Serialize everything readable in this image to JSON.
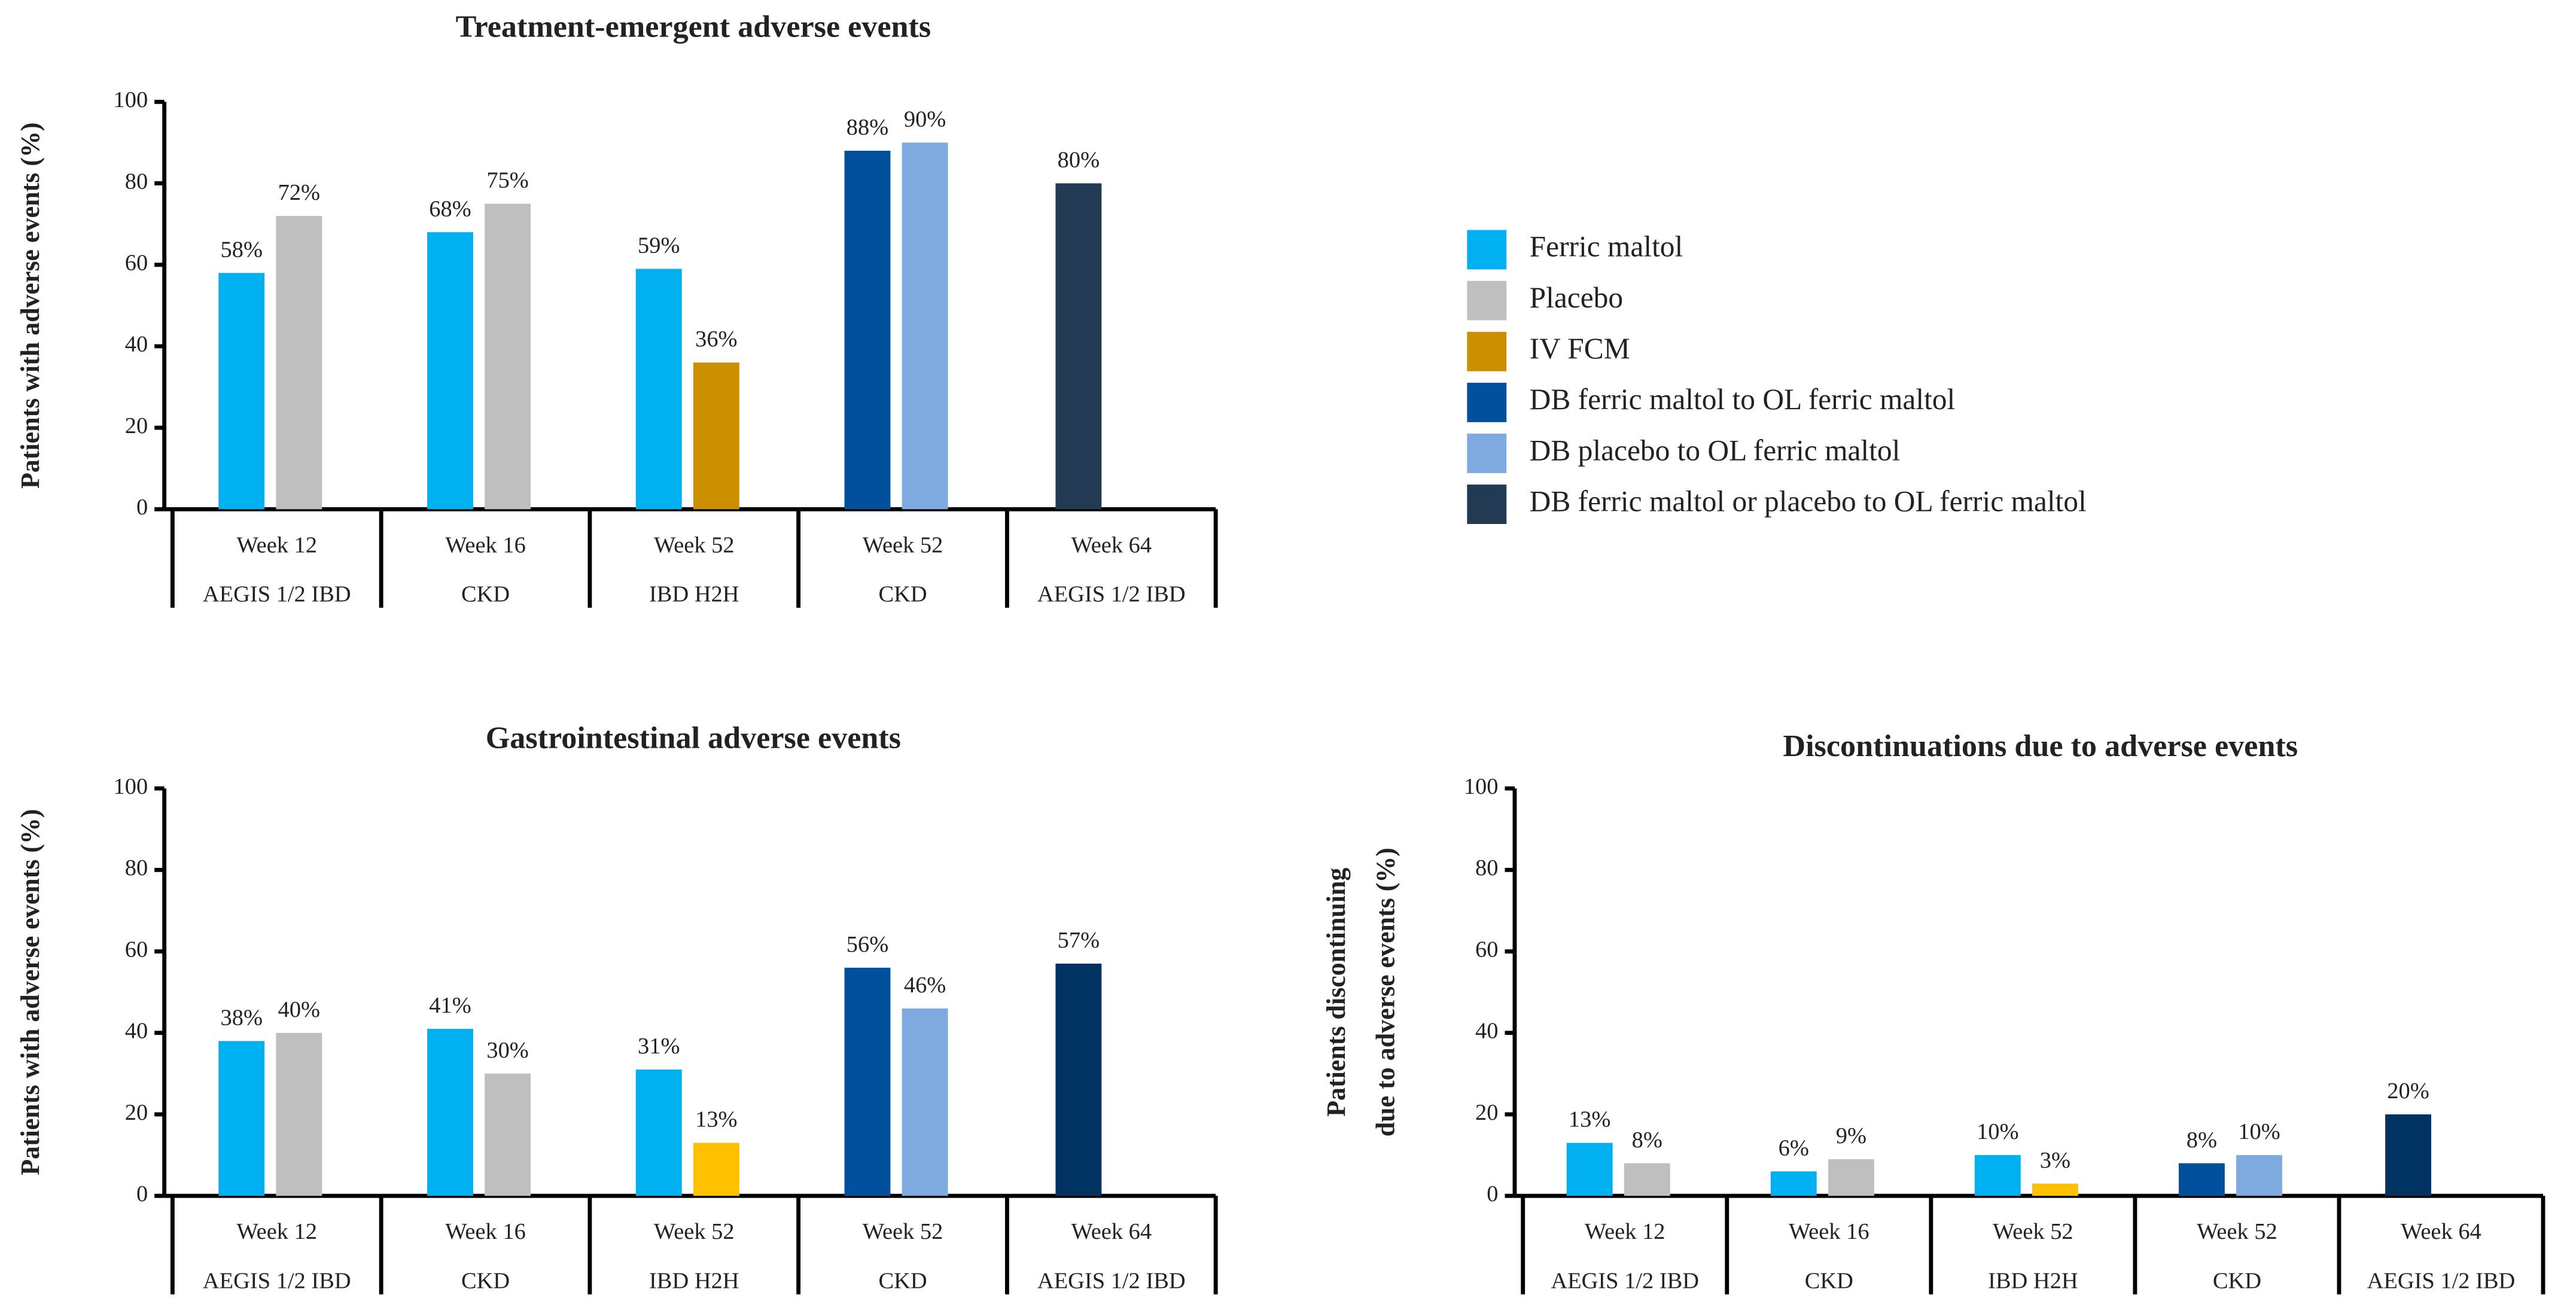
{
  "chart_data": [
    {
      "type": "bar",
      "title": "Treatment-emergent adverse events",
      "ylabel": "Patients with adverse events (%)",
      "categories": [
        "Week 12",
        "Week 16",
        "Week 52",
        "Week 52",
        "Week 64"
      ],
      "subcategories": [
        "AEGIS 1/2 IBD",
        "CKD",
        "IBD H2H",
        "CKD",
        "AEGIS 1/2 IBD"
      ],
      "ylim": [
        0,
        100
      ],
      "yticks": [
        0,
        20,
        40,
        60,
        80,
        100
      ],
      "legend": "right",
      "series": [
        {
          "name": "Ferric maltol",
          "color": "#00b0f0",
          "values": [
            58,
            68,
            59,
            null,
            null
          ],
          "value_labels": [
            "58%",
            "68%",
            "59%",
            null,
            null
          ]
        },
        {
          "name": "Placebo",
          "color": "#bfbfbf",
          "values": [
            72,
            75,
            null,
            null,
            null
          ],
          "value_labels": [
            "72%",
            "75%",
            null,
            null,
            null
          ]
        },
        {
          "name": "IV FCM",
          "color": "#cc8f00",
          "values": [
            null,
            null,
            36,
            null,
            null
          ],
          "value_labels": [
            null,
            null,
            "36%",
            null,
            null
          ]
        },
        {
          "name": "DB ferric maltol to OL ferric maltol",
          "color": "#00509d",
          "values": [
            null,
            null,
            null,
            88,
            null
          ],
          "value_labels": [
            null,
            null,
            null,
            "88%",
            null
          ]
        },
        {
          "name": "DB placebo to OL ferric maltol",
          "color": "#7faadf",
          "values": [
            null,
            null,
            null,
            90,
            null
          ],
          "value_labels": [
            null,
            null,
            null,
            "90%",
            null
          ]
        },
        {
          "name": "DB ferric maltol or placebo to OL ferric maltol",
          "color": "#233a54",
          "values": [
            null,
            null,
            null,
            null,
            80
          ],
          "value_labels": [
            null,
            null,
            null,
            null,
            "80%"
          ]
        }
      ]
    },
    {
      "type": "bar",
      "title": "Gastrointestinal adverse events",
      "ylabel": "Patients with adverse events (%)",
      "categories": [
        "Week 12",
        "Week 16",
        "Week 52",
        "Week 52",
        "Week 64"
      ],
      "subcategories": [
        "AEGIS 1/2 IBD",
        "CKD",
        "IBD H2H",
        "CKD",
        "AEGIS 1/2 IBD"
      ],
      "ylim": [
        0,
        100
      ],
      "yticks": [
        0,
        20,
        40,
        60,
        80,
        100
      ],
      "series": [
        {
          "color": "#00b0f0",
          "values": [
            38,
            41,
            31,
            null,
            null
          ],
          "value_labels": [
            "38%",
            "41%",
            "31%",
            null,
            null
          ]
        },
        {
          "color": "#bfbfbf",
          "values": [
            40,
            30,
            null,
            null,
            null
          ],
          "value_labels": [
            "40%",
            "30%",
            null,
            null,
            null
          ]
        },
        {
          "color": "#ffc000",
          "values": [
            null,
            null,
            13,
            null,
            null
          ],
          "value_labels": [
            null,
            null,
            "13%",
            null,
            null
          ]
        },
        {
          "color": "#00509d",
          "values": [
            null,
            null,
            null,
            56,
            null
          ],
          "value_labels": [
            null,
            null,
            null,
            "56%",
            null
          ]
        },
        {
          "color": "#7faadf",
          "values": [
            null,
            null,
            null,
            46,
            null
          ],
          "value_labels": [
            null,
            null,
            null,
            "46%",
            null
          ]
        },
        {
          "color": "#003262",
          "values": [
            null,
            null,
            null,
            null,
            57
          ],
          "value_labels": [
            null,
            null,
            null,
            null,
            "57%"
          ]
        }
      ]
    },
    {
      "type": "bar",
      "title": "Discontinuations due to adverse events",
      "ylabel": [
        "Patients discontinuing",
        "due to adverse events (%)"
      ],
      "categories": [
        "Week 12",
        "Week 16",
        "Week 52",
        "Week 52",
        "Week 64"
      ],
      "subcategories": [
        "AEGIS 1/2 IBD",
        "CKD",
        "IBD H2H",
        "CKD",
        "AEGIS 1/2 IBD"
      ],
      "ylim": [
        0,
        100
      ],
      "yticks": [
        0,
        20,
        40,
        60,
        80,
        100
      ],
      "series": [
        {
          "color": "#00b0f0",
          "values": [
            13,
            6,
            10,
            null,
            null
          ],
          "value_labels": [
            "13%",
            "6%",
            "10%",
            null,
            null
          ]
        },
        {
          "color": "#bfbfbf",
          "values": [
            8,
            9,
            null,
            null,
            null
          ],
          "value_labels": [
            "8%",
            "9%",
            null,
            null,
            null
          ]
        },
        {
          "color": "#ffc000",
          "values": [
            null,
            null,
            3,
            null,
            null
          ],
          "value_labels": [
            null,
            null,
            "3%",
            null,
            null
          ]
        },
        {
          "color": "#00509d",
          "values": [
            null,
            null,
            null,
            8,
            null
          ],
          "value_labels": [
            null,
            null,
            null,
            "8%",
            null
          ]
        },
        {
          "color": "#7faadf",
          "values": [
            null,
            null,
            null,
            10,
            null
          ],
          "value_labels": [
            null,
            null,
            null,
            "10%",
            null
          ]
        },
        {
          "color": "#003262",
          "values": [
            null,
            null,
            null,
            null,
            20
          ],
          "value_labels": [
            null,
            null,
            null,
            null,
            "20%"
          ]
        }
      ]
    }
  ]
}
